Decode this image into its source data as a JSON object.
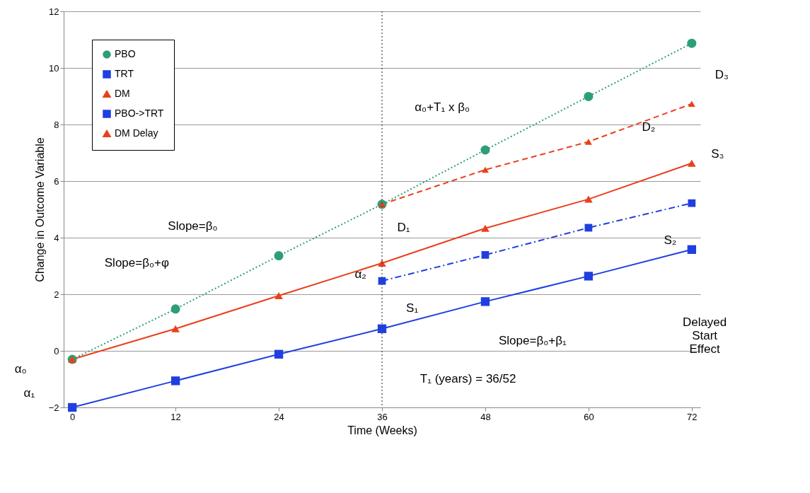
{
  "chart_data": {
    "type": "line",
    "xlabel": "Time (Weeks)",
    "ylabel": "Change in Outcome Variable",
    "xlim": [
      -1,
      73
    ],
    "xticks": [
      0,
      12,
      24,
      36,
      48,
      60,
      72
    ],
    "ylim": [
      -2,
      12
    ],
    "yticks": [
      -2,
      0,
      2,
      4,
      6,
      8,
      10,
      12
    ],
    "grid": "y",
    "legend": "top left",
    "series": [
      {
        "name": "PBO",
        "color": "#2e9e78",
        "marker": "circle",
        "line_style": "dotted",
        "x": [
          0,
          12,
          24,
          36,
          48,
          60,
          72
        ],
        "values": [
          -0.3,
          1.48,
          3.36,
          5.18,
          7.1,
          8.99,
          10.87
        ]
      },
      {
        "name": "TRT",
        "color": "#1f3fe0",
        "marker": "square",
        "line_style": "solid",
        "x": [
          0,
          12,
          24,
          36,
          48,
          60,
          72
        ],
        "values": [
          -2.0,
          -1.06,
          -0.12,
          0.78,
          1.74,
          2.64,
          3.58
        ]
      },
      {
        "name": "DM",
        "color": "#e8401c",
        "marker": "triangle",
        "line_style": "solid",
        "x": [
          0,
          12,
          24,
          36,
          48,
          60,
          72
        ],
        "values": [
          -0.3,
          0.78,
          1.95,
          3.1,
          4.33,
          5.36,
          6.63
        ]
      },
      {
        "name": "PBO->TRT",
        "color": "#1f3fe0",
        "marker": "square",
        "line_style": "dashdot",
        "x": [
          36,
          48,
          60,
          72
        ],
        "values": [
          2.47,
          3.39,
          4.35,
          5.22
        ]
      },
      {
        "name": "DM Delay",
        "color": "#e8401c",
        "marker": "triangle",
        "line_style": "dashed",
        "x": [
          36,
          48,
          60,
          72
        ],
        "values": [
          5.18,
          6.4,
          7.39,
          8.73
        ]
      }
    ],
    "ref_lines": [
      {
        "axis": "x",
        "value": 36,
        "color": "#444444",
        "line_style": "dotted"
      }
    ],
    "annotations": [
      "α₀+T₁ x β₀",
      "Slope=β₀",
      "Slope=β₀+φ",
      "Slope=β₀+β₁",
      "T₁ (years) = 36/52",
      "α₀",
      "α₁",
      "α₂",
      "D₁",
      "S₁",
      "D₂",
      "D₃",
      "S₃",
      "S₂",
      "Delayed\nStart\nEffect"
    ]
  }
}
